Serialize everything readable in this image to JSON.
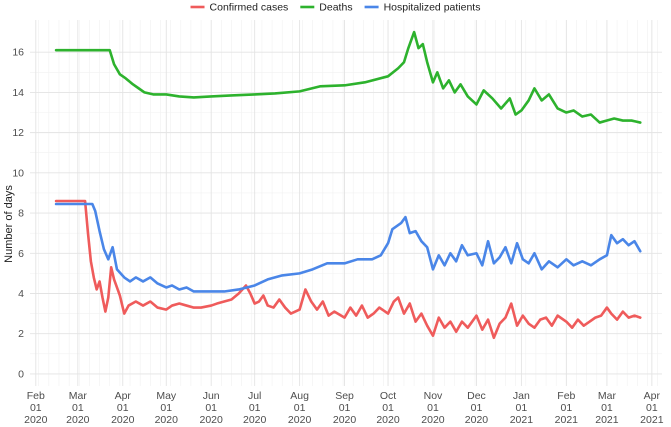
{
  "chart_data": {
    "type": "line",
    "title": "",
    "xlabel": "",
    "ylabel": "Number of days",
    "ylim": [
      -0.6,
      17.6
    ],
    "xlim": [
      "2020-01-28",
      "2021-04-08"
    ],
    "grid": true,
    "legend_position": "top",
    "y_ticks": [
      0,
      2,
      4,
      6,
      8,
      10,
      12,
      14,
      16
    ],
    "x_ticks": [
      {
        "date": "2020-02-01",
        "label": [
          "Feb",
          "01",
          "2020"
        ]
      },
      {
        "date": "2020-03-01",
        "label": [
          "Mar",
          "01",
          "2020"
        ]
      },
      {
        "date": "2020-04-01",
        "label": [
          "Apr",
          "01",
          "2020"
        ]
      },
      {
        "date": "2020-05-01",
        "label": [
          "May",
          "01",
          "2020"
        ]
      },
      {
        "date": "2020-06-01",
        "label": [
          "Jun",
          "01",
          "2020"
        ]
      },
      {
        "date": "2020-07-01",
        "label": [
          "Jul",
          "01",
          "2020"
        ]
      },
      {
        "date": "2020-08-01",
        "label": [
          "Aug",
          "01",
          "2020"
        ]
      },
      {
        "date": "2020-09-01",
        "label": [
          "Sep",
          "01",
          "2020"
        ]
      },
      {
        "date": "2020-10-01",
        "label": [
          "Oct",
          "01",
          "2020"
        ]
      },
      {
        "date": "2020-11-01",
        "label": [
          "Nov",
          "01",
          "2020"
        ]
      },
      {
        "date": "2020-12-01",
        "label": [
          "Dec",
          "01",
          "2020"
        ]
      },
      {
        "date": "2021-01-01",
        "label": [
          "Jan",
          "01",
          "2021"
        ]
      },
      {
        "date": "2021-02-01",
        "label": [
          "Feb",
          "01",
          "2021"
        ]
      },
      {
        "date": "2021-03-01",
        "label": [
          "Mar",
          "01",
          "2021"
        ]
      },
      {
        "date": "2021-04-01",
        "label": [
          "Apr",
          "01",
          "2021"
        ]
      }
    ],
    "series": [
      {
        "name": "Confirmed cases",
        "color": "#ef5b5b",
        "points": [
          [
            "2020-02-15",
            8.6
          ],
          [
            "2020-03-06",
            8.6
          ],
          [
            "2020-03-08",
            7.0
          ],
          [
            "2020-03-10",
            5.6
          ],
          [
            "2020-03-12",
            4.8
          ],
          [
            "2020-03-14",
            4.2
          ],
          [
            "2020-03-16",
            4.6
          ],
          [
            "2020-03-18",
            3.8
          ],
          [
            "2020-03-20",
            3.1
          ],
          [
            "2020-03-22",
            3.8
          ],
          [
            "2020-03-24",
            5.3
          ],
          [
            "2020-03-26",
            4.7
          ],
          [
            "2020-03-28",
            4.3
          ],
          [
            "2020-03-30",
            3.9
          ],
          [
            "2020-04-02",
            3.0
          ],
          [
            "2020-04-05",
            3.4
          ],
          [
            "2020-04-10",
            3.6
          ],
          [
            "2020-04-15",
            3.4
          ],
          [
            "2020-04-20",
            3.6
          ],
          [
            "2020-04-25",
            3.3
          ],
          [
            "2020-05-01",
            3.2
          ],
          [
            "2020-05-05",
            3.4
          ],
          [
            "2020-05-10",
            3.5
          ],
          [
            "2020-05-15",
            3.4
          ],
          [
            "2020-05-20",
            3.3
          ],
          [
            "2020-05-25",
            3.3
          ],
          [
            "2020-06-01",
            3.4
          ],
          [
            "2020-06-05",
            3.5
          ],
          [
            "2020-06-10",
            3.6
          ],
          [
            "2020-06-15",
            3.7
          ],
          [
            "2020-06-20",
            4.0
          ],
          [
            "2020-06-25",
            4.4
          ],
          [
            "2020-06-28",
            4.0
          ],
          [
            "2020-07-01",
            3.5
          ],
          [
            "2020-07-04",
            3.6
          ],
          [
            "2020-07-07",
            3.9
          ],
          [
            "2020-07-10",
            3.4
          ],
          [
            "2020-07-14",
            3.3
          ],
          [
            "2020-07-18",
            3.7
          ],
          [
            "2020-07-22",
            3.3
          ],
          [
            "2020-07-26",
            3.0
          ],
          [
            "2020-08-01",
            3.2
          ],
          [
            "2020-08-05",
            4.2
          ],
          [
            "2020-08-09",
            3.6
          ],
          [
            "2020-08-13",
            3.2
          ],
          [
            "2020-08-17",
            3.6
          ],
          [
            "2020-08-21",
            2.9
          ],
          [
            "2020-08-25",
            3.1
          ],
          [
            "2020-09-01",
            2.8
          ],
          [
            "2020-09-05",
            3.3
          ],
          [
            "2020-09-09",
            2.9
          ],
          [
            "2020-09-13",
            3.4
          ],
          [
            "2020-09-17",
            2.8
          ],
          [
            "2020-09-21",
            3.0
          ],
          [
            "2020-09-25",
            3.3
          ],
          [
            "2020-10-01",
            3.0
          ],
          [
            "2020-10-05",
            3.6
          ],
          [
            "2020-10-08",
            3.8
          ],
          [
            "2020-10-12",
            3.0
          ],
          [
            "2020-10-16",
            3.5
          ],
          [
            "2020-10-20",
            2.6
          ],
          [
            "2020-10-24",
            3.0
          ],
          [
            "2020-10-28",
            2.4
          ],
          [
            "2020-11-01",
            1.9
          ],
          [
            "2020-11-05",
            2.8
          ],
          [
            "2020-11-09",
            2.3
          ],
          [
            "2020-11-13",
            2.6
          ],
          [
            "2020-11-17",
            2.1
          ],
          [
            "2020-11-21",
            2.6
          ],
          [
            "2020-11-25",
            2.3
          ],
          [
            "2020-12-01",
            2.9
          ],
          [
            "2020-12-05",
            2.2
          ],
          [
            "2020-12-09",
            2.7
          ],
          [
            "2020-12-13",
            1.8
          ],
          [
            "2020-12-17",
            2.5
          ],
          [
            "2020-12-21",
            2.8
          ],
          [
            "2020-12-25",
            3.5
          ],
          [
            "2020-12-29",
            2.4
          ],
          [
            "2021-01-02",
            2.9
          ],
          [
            "2021-01-06",
            2.5
          ],
          [
            "2021-01-10",
            2.3
          ],
          [
            "2021-01-14",
            2.7
          ],
          [
            "2021-01-18",
            2.8
          ],
          [
            "2021-01-22",
            2.4
          ],
          [
            "2021-01-26",
            2.9
          ],
          [
            "2021-02-01",
            2.6
          ],
          [
            "2021-02-05",
            2.3
          ],
          [
            "2021-02-09",
            2.7
          ],
          [
            "2021-02-13",
            2.4
          ],
          [
            "2021-02-17",
            2.6
          ],
          [
            "2021-02-21",
            2.8
          ],
          [
            "2021-02-25",
            2.9
          ],
          [
            "2021-03-01",
            3.3
          ],
          [
            "2021-03-04",
            3.0
          ],
          [
            "2021-03-08",
            2.7
          ],
          [
            "2021-03-12",
            3.1
          ],
          [
            "2021-03-16",
            2.8
          ],
          [
            "2021-03-20",
            2.9
          ],
          [
            "2021-03-24",
            2.8
          ]
        ]
      },
      {
        "name": "Deaths",
        "color": "#2db22d",
        "points": [
          [
            "2020-02-15",
            16.1
          ],
          [
            "2020-03-23",
            16.1
          ],
          [
            "2020-03-26",
            15.4
          ],
          [
            "2020-03-30",
            14.9
          ],
          [
            "2020-04-03",
            14.7
          ],
          [
            "2020-04-08",
            14.4
          ],
          [
            "2020-04-12",
            14.2
          ],
          [
            "2020-04-16",
            14.0
          ],
          [
            "2020-04-22",
            13.9
          ],
          [
            "2020-05-01",
            13.9
          ],
          [
            "2020-05-10",
            13.8
          ],
          [
            "2020-05-20",
            13.75
          ],
          [
            "2020-06-01",
            13.8
          ],
          [
            "2020-06-15",
            13.85
          ],
          [
            "2020-07-01",
            13.9
          ],
          [
            "2020-07-15",
            13.95
          ],
          [
            "2020-08-01",
            14.05
          ],
          [
            "2020-08-15",
            14.3
          ],
          [
            "2020-09-01",
            14.35
          ],
          [
            "2020-09-15",
            14.5
          ],
          [
            "2020-10-01",
            14.8
          ],
          [
            "2020-10-08",
            15.2
          ],
          [
            "2020-10-12",
            15.5
          ],
          [
            "2020-10-15",
            16.2
          ],
          [
            "2020-10-19",
            17.0
          ],
          [
            "2020-10-22",
            16.2
          ],
          [
            "2020-10-25",
            16.4
          ],
          [
            "2020-10-28",
            15.5
          ],
          [
            "2020-11-01",
            14.5
          ],
          [
            "2020-11-04",
            15.0
          ],
          [
            "2020-11-08",
            14.2
          ],
          [
            "2020-11-12",
            14.6
          ],
          [
            "2020-11-16",
            14.0
          ],
          [
            "2020-11-20",
            14.4
          ],
          [
            "2020-11-25",
            13.8
          ],
          [
            "2020-12-01",
            13.4
          ],
          [
            "2020-12-06",
            14.1
          ],
          [
            "2020-12-12",
            13.7
          ],
          [
            "2020-12-18",
            13.2
          ],
          [
            "2020-12-24",
            13.7
          ],
          [
            "2020-12-28",
            12.9
          ],
          [
            "2021-01-01",
            13.1
          ],
          [
            "2021-01-06",
            13.6
          ],
          [
            "2021-01-10",
            14.2
          ],
          [
            "2021-01-15",
            13.6
          ],
          [
            "2021-01-20",
            13.9
          ],
          [
            "2021-01-26",
            13.2
          ],
          [
            "2021-02-01",
            13.0
          ],
          [
            "2021-02-06",
            13.1
          ],
          [
            "2021-02-12",
            12.8
          ],
          [
            "2021-02-18",
            12.9
          ],
          [
            "2021-02-24",
            12.5
          ],
          [
            "2021-03-01",
            12.6
          ],
          [
            "2021-03-06",
            12.7
          ],
          [
            "2021-03-12",
            12.6
          ],
          [
            "2021-03-18",
            12.6
          ],
          [
            "2021-03-24",
            12.5
          ]
        ]
      },
      {
        "name": "Hospitalized patients",
        "color": "#4a86e8",
        "points": [
          [
            "2020-02-15",
            8.45
          ],
          [
            "2020-03-06",
            8.45
          ],
          [
            "2020-03-11",
            8.45
          ],
          [
            "2020-03-13",
            8.1
          ],
          [
            "2020-03-16",
            7.1
          ],
          [
            "2020-03-19",
            6.2
          ],
          [
            "2020-03-22",
            5.7
          ],
          [
            "2020-03-25",
            6.3
          ],
          [
            "2020-03-28",
            5.2
          ],
          [
            "2020-04-02",
            4.8
          ],
          [
            "2020-04-06",
            4.6
          ],
          [
            "2020-04-10",
            4.8
          ],
          [
            "2020-04-15",
            4.6
          ],
          [
            "2020-04-20",
            4.8
          ],
          [
            "2020-04-25",
            4.5
          ],
          [
            "2020-05-01",
            4.3
          ],
          [
            "2020-05-05",
            4.4
          ],
          [
            "2020-05-10",
            4.2
          ],
          [
            "2020-05-15",
            4.3
          ],
          [
            "2020-05-20",
            4.1
          ],
          [
            "2020-06-01",
            4.1
          ],
          [
            "2020-06-10",
            4.1
          ],
          [
            "2020-06-20",
            4.2
          ],
          [
            "2020-07-01",
            4.4
          ],
          [
            "2020-07-10",
            4.7
          ],
          [
            "2020-07-20",
            4.9
          ],
          [
            "2020-08-01",
            5.0
          ],
          [
            "2020-08-10",
            5.2
          ],
          [
            "2020-08-20",
            5.5
          ],
          [
            "2020-09-01",
            5.5
          ],
          [
            "2020-09-10",
            5.7
          ],
          [
            "2020-09-20",
            5.7
          ],
          [
            "2020-09-26",
            5.9
          ],
          [
            "2020-10-01",
            6.5
          ],
          [
            "2020-10-04",
            7.2
          ],
          [
            "2020-10-10",
            7.5
          ],
          [
            "2020-10-13",
            7.8
          ],
          [
            "2020-10-16",
            7.0
          ],
          [
            "2020-10-20",
            7.1
          ],
          [
            "2020-10-24",
            6.6
          ],
          [
            "2020-10-28",
            6.3
          ],
          [
            "2020-11-01",
            5.2
          ],
          [
            "2020-11-05",
            5.9
          ],
          [
            "2020-11-09",
            5.4
          ],
          [
            "2020-11-13",
            6.0
          ],
          [
            "2020-11-17",
            5.6
          ],
          [
            "2020-11-21",
            6.4
          ],
          [
            "2020-11-25",
            5.9
          ],
          [
            "2020-12-01",
            6.0
          ],
          [
            "2020-12-05",
            5.4
          ],
          [
            "2020-12-09",
            6.6
          ],
          [
            "2020-12-13",
            5.5
          ],
          [
            "2020-12-17",
            5.8
          ],
          [
            "2020-12-21",
            6.3
          ],
          [
            "2020-12-25",
            5.5
          ],
          [
            "2020-12-29",
            6.5
          ],
          [
            "2021-01-02",
            5.7
          ],
          [
            "2021-01-06",
            5.5
          ],
          [
            "2021-01-10",
            6.0
          ],
          [
            "2021-01-15",
            5.2
          ],
          [
            "2021-01-20",
            5.6
          ],
          [
            "2021-01-26",
            5.3
          ],
          [
            "2021-02-01",
            5.7
          ],
          [
            "2021-02-06",
            5.4
          ],
          [
            "2021-02-12",
            5.6
          ],
          [
            "2021-02-18",
            5.4
          ],
          [
            "2021-02-24",
            5.7
          ],
          [
            "2021-03-01",
            5.9
          ],
          [
            "2021-03-04",
            6.9
          ],
          [
            "2021-03-08",
            6.5
          ],
          [
            "2021-03-12",
            6.7
          ],
          [
            "2021-03-16",
            6.4
          ],
          [
            "2021-03-20",
            6.6
          ],
          [
            "2021-03-24",
            6.1
          ]
        ]
      }
    ]
  }
}
